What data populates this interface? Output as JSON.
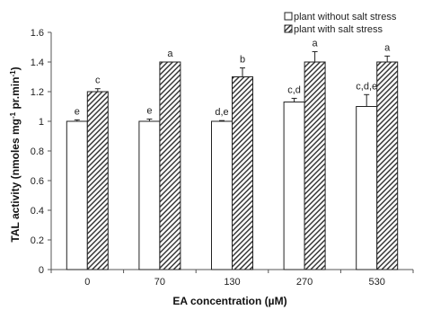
{
  "chart_data": {
    "type": "bar",
    "title": "",
    "xlabel": "EA concentration (µM)",
    "ylabel": "TAL activity (nmoles mg",
    "ylabel_sup": "-1",
    "ylabel_mid": " pr.min",
    "ylabel_end": ")",
    "ylim": [
      0,
      1.6
    ],
    "yticks": [
      "0",
      "0.2",
      "0.4",
      "0.6",
      "0.8",
      "1",
      "1.2",
      "1.4",
      "1.6"
    ],
    "categories": [
      "0",
      "70",
      "130",
      "270",
      "530"
    ],
    "legend_position": "top-right",
    "grid": false,
    "series": [
      {
        "name": "plant without salt stress",
        "pattern": "white",
        "values": [
          1.0,
          1.0,
          1.0,
          1.13,
          1.1
        ],
        "errors": [
          0.01,
          0.015,
          0.005,
          0.025,
          0.08
        ],
        "letters": [
          "e",
          "e",
          "d,e",
          "c,d",
          "c,d,e"
        ]
      },
      {
        "name": "plant with salt stress",
        "pattern": "hatched",
        "values": [
          1.2,
          1.4,
          1.3,
          1.4,
          1.4
        ],
        "errors": [
          0.02,
          0.0,
          0.06,
          0.07,
          0.04
        ],
        "letters": [
          "c",
          "a",
          "b",
          "a",
          "a"
        ]
      }
    ]
  }
}
